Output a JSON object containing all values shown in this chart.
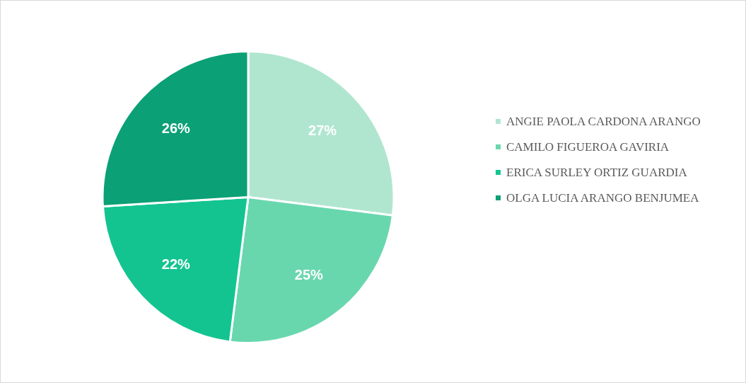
{
  "chart_data": {
    "type": "pie",
    "categories": [
      "ANGIE PAOLA CARDONA ARANGO",
      "CAMILO FIGUEROA GAVIRIA",
      "ERICA SURLEY ORTIZ GUARDIA",
      "OLGA LUCIA ARANGO BENJUMEA"
    ],
    "values": [
      27,
      25,
      22,
      26
    ],
    "colors": [
      "#b0e6cf",
      "#69d7ae",
      "#13c490",
      "#0ba075"
    ],
    "value_labels": [
      "27%",
      "25%",
      "22%",
      "26%"
    ],
    "legend": "right"
  }
}
